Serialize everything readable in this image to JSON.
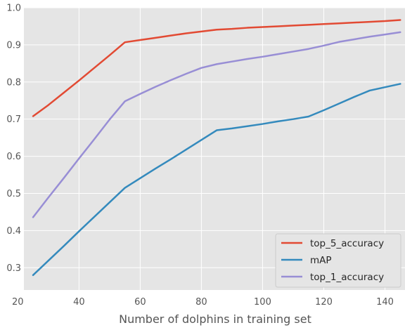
{
  "chart_data": {
    "type": "line",
    "title": "",
    "xlabel": "Number of dolphins in training set",
    "ylabel": "",
    "xlim": [
      22,
      147
    ],
    "ylim": [
      0.24,
      1.0
    ],
    "xticks": [
      20,
      40,
      60,
      80,
      100,
      120,
      140
    ],
    "yticks": [
      0.3,
      0.4,
      0.5,
      0.6,
      0.7,
      0.8,
      0.9,
      1.0
    ],
    "grid": true,
    "legend_position": "lower-right",
    "series": [
      {
        "name": "top_5_accuracy",
        "color": "#E24A33",
        "x": [
          25,
          30,
          35,
          40,
          45,
          50,
          55,
          60,
          65,
          70,
          75,
          80,
          85,
          90,
          95,
          100,
          105,
          110,
          115,
          120,
          125,
          130,
          135,
          140,
          145
        ],
        "y": [
          0.708,
          0.738,
          0.771,
          0.804,
          0.838,
          0.872,
          0.907,
          0.913,
          0.919,
          0.925,
          0.931,
          0.936,
          0.941,
          0.943,
          0.946,
          0.948,
          0.95,
          0.952,
          0.954,
          0.956,
          0.958,
          0.96,
          0.962,
          0.964,
          0.967
        ]
      },
      {
        "name": "mAP",
        "color": "#348ABD",
        "x": [
          25,
          30,
          35,
          40,
          45,
          50,
          55,
          60,
          65,
          70,
          75,
          80,
          85,
          90,
          95,
          100,
          105,
          110,
          115,
          120,
          125,
          130,
          135,
          140,
          145
        ],
        "y": [
          0.28,
          0.319,
          0.358,
          0.398,
          0.437,
          0.476,
          0.515,
          0.541,
          0.567,
          0.592,
          0.618,
          0.644,
          0.67,
          0.675,
          0.681,
          0.687,
          0.694,
          0.7,
          0.707,
          0.724,
          0.742,
          0.76,
          0.777,
          0.786,
          0.795
        ]
      },
      {
        "name": "top_1_accuracy",
        "color": "#988ED5",
        "x": [
          25,
          30,
          35,
          40,
          45,
          50,
          55,
          60,
          65,
          70,
          75,
          80,
          85,
          90,
          95,
          100,
          105,
          110,
          115,
          120,
          125,
          130,
          135,
          140,
          145
        ],
        "y": [
          0.436,
          0.489,
          0.541,
          0.594,
          0.646,
          0.699,
          0.748,
          0.768,
          0.787,
          0.805,
          0.822,
          0.838,
          0.848,
          0.855,
          0.862,
          0.868,
          0.875,
          0.882,
          0.889,
          0.898,
          0.908,
          0.915,
          0.922,
          0.928,
          0.934
        ]
      }
    ]
  }
}
